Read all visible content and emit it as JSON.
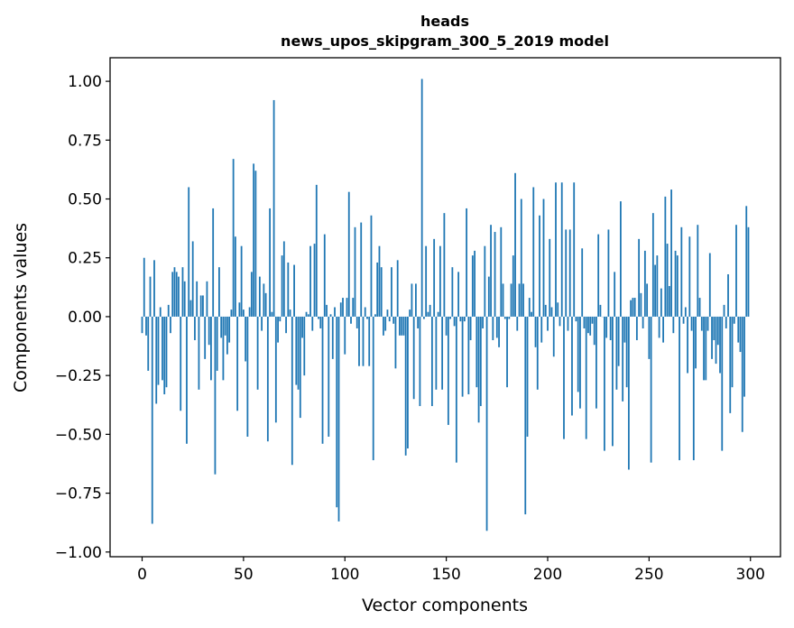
{
  "chart_data": {
    "type": "bar",
    "title": "heads",
    "subtitle": "news_upos_skipgram_300_5_2019 model",
    "xlabel": "Vector components",
    "ylabel": "Components values",
    "xlim": [
      -15.8,
      314.8
    ],
    "ylim": [
      -1.02,
      1.1
    ],
    "xticks": [
      0,
      50,
      100,
      150,
      200,
      250,
      300
    ],
    "yticks": [
      1.0,
      0.75,
      0.5,
      0.25,
      0.0,
      -0.25,
      -0.5,
      -0.75,
      -1.0
    ],
    "ytick_labels": [
      "1.00",
      "0.75",
      "0.50",
      "0.25",
      "0.00",
      "−0.25",
      "−0.50",
      "−0.75",
      "−1.00"
    ],
    "bar_color": "#1f77b4",
    "series": [
      {
        "name": "heads",
        "x_start": 0,
        "values": [
          -0.07,
          0.25,
          -0.08,
          -0.23,
          0.17,
          -0.88,
          0.24,
          -0.37,
          -0.29,
          0.04,
          -0.27,
          -0.33,
          -0.3,
          0.05,
          -0.07,
          0.19,
          0.21,
          0.19,
          0.17,
          -0.4,
          0.21,
          0.15,
          -0.54,
          0.55,
          0.07,
          0.32,
          -0.1,
          0.15,
          -0.31,
          0.09,
          0.09,
          -0.18,
          0.15,
          -0.12,
          -0.27,
          0.46,
          -0.67,
          -0.23,
          0.21,
          -0.09,
          -0.27,
          -0.08,
          -0.16,
          -0.11,
          0.03,
          0.67,
          0.34,
          -0.4,
          0.06,
          0.3,
          0.03,
          -0.19,
          -0.51,
          0.04,
          0.19,
          0.65,
          0.62,
          -0.31,
          0.17,
          -0.06,
          0.14,
          0.1,
          -0.53,
          0.46,
          0.02,
          0.92,
          -0.45,
          -0.11,
          -0.02,
          0.26,
          0.32,
          -0.07,
          0.23,
          0.03,
          -0.63,
          0.22,
          -0.29,
          -0.31,
          -0.43,
          -0.09,
          -0.25,
          0.02,
          0.01,
          0.3,
          -0.06,
          0.31,
          0.56,
          -0.01,
          -0.05,
          -0.54,
          0.35,
          0.05,
          -0.51,
          0.01,
          -0.18,
          0.04,
          -0.81,
          -0.87,
          0.06,
          0.08,
          -0.16,
          0.08,
          0.53,
          -0.03,
          0.08,
          0.38,
          -0.05,
          -0.21,
          0.4,
          -0.21,
          0.04,
          -0.01,
          -0.21,
          0.43,
          -0.61,
          0.01,
          0.23,
          0.3,
          0.21,
          -0.08,
          -0.06,
          0.03,
          -0.02,
          0.21,
          -0.03,
          -0.22,
          0.24,
          -0.08,
          -0.08,
          -0.08,
          -0.59,
          -0.56,
          0.03,
          0.14,
          -0.35,
          0.14,
          -0.05,
          -0.38,
          1.01,
          -0.01,
          0.3,
          0.02,
          0.05,
          -0.38,
          0.33,
          -0.31,
          0.02,
          0.3,
          -0.31,
          0.44,
          -0.08,
          -0.46,
          -0.01,
          0.21,
          -0.04,
          -0.62,
          0.19,
          -0.02,
          -0.34,
          -0.02,
          0.46,
          -0.33,
          -0.1,
          0.26,
          0.28,
          -0.3,
          -0.45,
          -0.38,
          -0.05,
          0.3,
          -0.91,
          0.17,
          0.39,
          -0.1,
          0.36,
          -0.09,
          -0.13,
          0.38,
          0.14,
          -0.01,
          -0.3,
          -0.01,
          0.14,
          0.26,
          0.61,
          -0.06,
          0.14,
          0.5,
          0.14,
          -0.84,
          -0.51,
          0.08,
          0.02,
          0.55,
          -0.13,
          -0.31,
          0.43,
          -0.11,
          0.5,
          0.05,
          -0.06,
          0.33,
          0.04,
          -0.17,
          0.57,
          0.06,
          -0.04,
          0.57,
          -0.52,
          0.37,
          -0.06,
          0.37,
          -0.42,
          0.57,
          -0.02,
          -0.32,
          -0.39,
          0.29,
          -0.05,
          -0.52,
          -0.07,
          -0.08,
          -0.03,
          -0.12,
          -0.39,
          0.35,
          0.05,
          0.0,
          -0.57,
          -0.09,
          0.37,
          -0.1,
          -0.55,
          0.19,
          -0.31,
          -0.21,
          0.49,
          -0.36,
          -0.11,
          -0.3,
          -0.65,
          0.07,
          0.08,
          0.08,
          -0.1,
          0.33,
          0.1,
          -0.05,
          0.28,
          0.14,
          -0.18,
          -0.62,
          0.44,
          0.22,
          0.26,
          -0.09,
          0.12,
          -0.11,
          0.51,
          0.31,
          0.13,
          0.54,
          -0.07,
          0.28,
          0.26,
          -0.61,
          0.38,
          -0.03,
          0.04,
          -0.24,
          0.34,
          -0.06,
          -0.61,
          -0.22,
          0.39,
          0.08,
          -0.06,
          -0.27,
          -0.27,
          -0.06,
          0.27,
          -0.18,
          -0.1,
          -0.2,
          -0.12,
          -0.24,
          -0.57,
          0.05,
          -0.05,
          0.18,
          -0.41,
          -0.3,
          -0.03,
          0.39,
          -0.11,
          -0.15,
          -0.49,
          -0.34,
          0.47,
          0.38
        ]
      }
    ]
  }
}
